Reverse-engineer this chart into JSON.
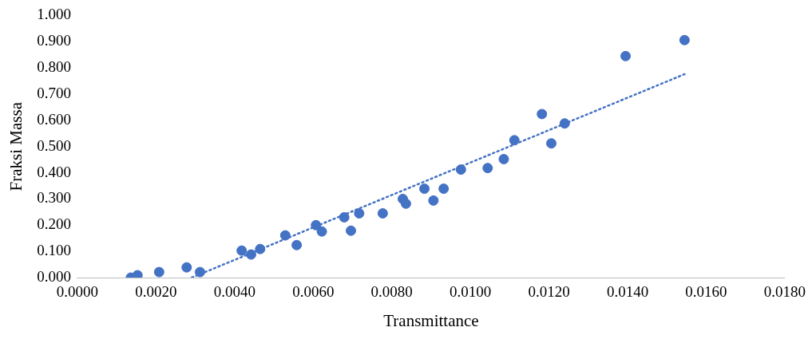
{
  "chart_data": {
    "type": "scatter",
    "xlabel": "Transmittance",
    "ylabel": "Fraksi Massa",
    "marker": "circle",
    "xlim": [
      0,
      0.018
    ],
    "xticks": [
      {
        "value": 0,
        "label": "0.0000"
      },
      {
        "value": 0.002,
        "label": "0.0020"
      },
      {
        "value": 0.004,
        "label": "0.0040"
      },
      {
        "value": 0.006,
        "label": "0.0060"
      },
      {
        "value": 0.008,
        "label": "0.0080"
      },
      {
        "value": 0.01,
        "label": "0.0100"
      },
      {
        "value": 0.012,
        "label": "0.0120"
      },
      {
        "value": 0.014,
        "label": "0.0140"
      },
      {
        "value": 0.016,
        "label": "0.0160"
      },
      {
        "value": 0.018,
        "label": "0.0180"
      }
    ],
    "ylim": [
      0,
      1
    ],
    "yticks": [
      {
        "value": 0,
        "label": "0.000"
      },
      {
        "value": 0.1,
        "label": "0.100"
      },
      {
        "value": 0.2,
        "label": "0.200"
      },
      {
        "value": 0.3,
        "label": "0.300"
      },
      {
        "value": 0.4,
        "label": "0.400"
      },
      {
        "value": 0.5,
        "label": "0.500"
      },
      {
        "value": 0.6,
        "label": "0.600"
      },
      {
        "value": 0.7,
        "label": "0.700"
      },
      {
        "value": 0.8,
        "label": "0.800"
      },
      {
        "value": 0.9,
        "label": "0.900"
      },
      {
        "value": 1,
        "label": "1.000"
      }
    ],
    "series": [
      {
        "color": "#4472c4",
        "x": [
          0.00136,
          0.00153,
          0.00208,
          0.00278,
          0.00312,
          0.00418,
          0.00442,
          0.00465,
          0.00529,
          0.00558,
          0.00607,
          0.00622,
          0.00679,
          0.00696,
          0.00717,
          0.00777,
          0.00828,
          0.00836,
          0.00883,
          0.00906,
          0.00932,
          0.00976,
          0.01044,
          0.01085,
          0.01112,
          0.01182,
          0.01206,
          0.0124,
          0.01395,
          0.01545
        ],
        "values": [
          0,
          0.009,
          0.021,
          0.039,
          0.021,
          0.103,
          0.088,
          0.109,
          0.161,
          0.124,
          0.2,
          0.176,
          0.23,
          0.179,
          0.245,
          0.245,
          0.3,
          0.282,
          0.339,
          0.294,
          0.339,
          0.412,
          0.418,
          0.452,
          0.524,
          0.624,
          0.512,
          0.588,
          0.845,
          0.906
        ]
      },
      {
        "type": "line",
        "color": "#4472c4",
        "line_style": "dotted",
        "marker": "none",
        "x": [
          0.00291,
          0.01545
        ],
        "values": [
          0,
          0.776
        ]
      }
    ]
  }
}
